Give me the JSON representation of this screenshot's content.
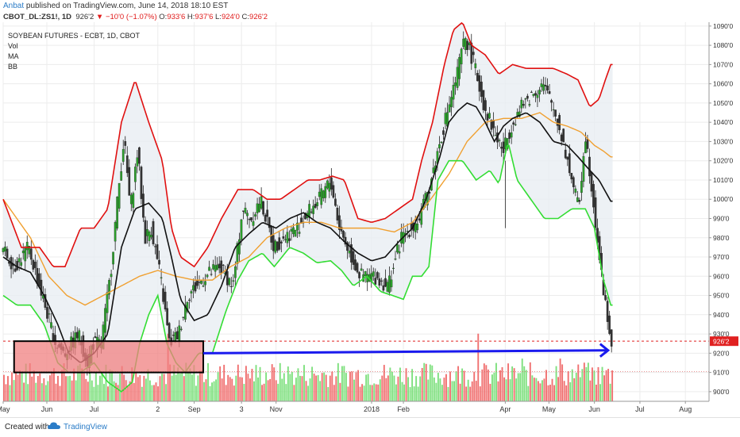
{
  "header": {
    "author": "Anbat",
    "published_text": "published on TradingView.com, June 14, 2018 18:10 EST",
    "symbol": "CBOT_DL:ZS1!, 1D",
    "last": "926'2",
    "change": "−10'0 (−1.07%)",
    "open_label": "O:",
    "open": "933'6",
    "high_label": "H:",
    "high": "937'6",
    "low_label": "L:",
    "low": "924'0",
    "close_label": "C:",
    "close": "926'2"
  },
  "legend": {
    "title": "SOYBEAN FUTURES - ECBT, 1D, CBOT",
    "vol": "Vol",
    "ma": "MA",
    "bb": "BB"
  },
  "footer": {
    "created_with": "Created with",
    "brand": "TradingView"
  },
  "colors": {
    "bb_upper": "#e01010",
    "bb_lower": "#33dd33",
    "ma_fast": "#111111",
    "ma_slow": "#f0a030",
    "arrow": "#1a1aee",
    "box_fill": "#f08080",
    "vol_up": "#7ee07e",
    "vol_down": "#f07070",
    "price_tag": "#e02020"
  },
  "chart_data": {
    "type": "candlestick",
    "price_axis": {
      "range": [
        895,
        1092
      ],
      "ticks": [
        "900'0",
        "910'0",
        "920'0",
        "930'0",
        "940'0",
        "950'0",
        "960'0",
        "970'0",
        "980'0",
        "990'0",
        "1000'0",
        "1010'0",
        "1020'0",
        "1030'0",
        "1040'0",
        "1050'0",
        "1060'0",
        "1070'0",
        "1080'0",
        "1090'0"
      ],
      "last_price_label": "926'2",
      "last_price": 926.25
    },
    "time_axis": {
      "labels": [
        "May",
        "Jun",
        "Jul",
        "2",
        "Sep",
        "3",
        "Nov",
        "2018",
        "Feb",
        "Apr",
        "May",
        "Jun",
        "Jul",
        "Aug"
      ],
      "label_days": [
        0,
        48,
        100,
        170,
        210,
        262,
        300,
        405,
        440,
        552,
        600,
        650,
        700,
        750
      ]
    },
    "last_day": 670,
    "price_path": [
      [
        0,
        975
      ],
      [
        15,
        965
      ],
      [
        30,
        975
      ],
      [
        45,
        950
      ],
      [
        60,
        925
      ],
      [
        70,
        920
      ],
      [
        85,
        930
      ],
      [
        95,
        915
      ],
      [
        100,
        925
      ],
      [
        110,
        925
      ],
      [
        120,
        960
      ],
      [
        128,
        1000
      ],
      [
        135,
        1032
      ],
      [
        142,
        995
      ],
      [
        150,
        1025
      ],
      [
        158,
        980
      ],
      [
        165,
        985
      ],
      [
        175,
        960
      ],
      [
        185,
        925
      ],
      [
        195,
        930
      ],
      [
        205,
        950
      ],
      [
        215,
        955
      ],
      [
        225,
        960
      ],
      [
        240,
        965
      ],
      [
        255,
        955
      ],
      [
        265,
        995
      ],
      [
        275,
        990
      ],
      [
        285,
        1000
      ],
      [
        300,
        975
      ],
      [
        310,
        980
      ],
      [
        325,
        985
      ],
      [
        340,
        995
      ],
      [
        350,
        1000
      ],
      [
        362,
        1010
      ],
      [
        372,
        985
      ],
      [
        385,
        970
      ],
      [
        395,
        960
      ],
      [
        410,
        960
      ],
      [
        425,
        955
      ],
      [
        440,
        980
      ],
      [
        450,
        985
      ],
      [
        460,
        990
      ],
      [
        470,
        1005
      ],
      [
        480,
        1025
      ],
      [
        490,
        1045
      ],
      [
        500,
        1062
      ],
      [
        510,
        1085
      ],
      [
        520,
        1070
      ],
      [
        530,
        1050
      ],
      [
        542,
        1035
      ],
      [
        552,
        1025
      ],
      [
        562,
        1040
      ],
      [
        575,
        1050
      ],
      [
        585,
        1055
      ],
      [
        595,
        1060
      ],
      [
        605,
        1050
      ],
      [
        615,
        1035
      ],
      [
        625,
        1015
      ],
      [
        635,
        995
      ],
      [
        642,
        1035
      ],
      [
        652,
        995
      ],
      [
        660,
        960
      ],
      [
        666,
        940
      ],
      [
        670,
        926
      ]
    ],
    "bb_upper": [
      [
        0,
        1000
      ],
      [
        20,
        975
      ],
      [
        40,
        975
      ],
      [
        55,
        965
      ],
      [
        68,
        965
      ],
      [
        85,
        985
      ],
      [
        100,
        985
      ],
      [
        115,
        995
      ],
      [
        130,
        1040
      ],
      [
        145,
        1062
      ],
      [
        160,
        1040
      ],
      [
        175,
        1020
      ],
      [
        185,
        985
      ],
      [
        195,
        970
      ],
      [
        210,
        965
      ],
      [
        225,
        975
      ],
      [
        240,
        990
      ],
      [
        258,
        1005
      ],
      [
        275,
        1005
      ],
      [
        290,
        1000
      ],
      [
        305,
        1000
      ],
      [
        320,
        1005
      ],
      [
        335,
        1010
      ],
      [
        348,
        1010
      ],
      [
        362,
        1012
      ],
      [
        375,
        1010
      ],
      [
        390,
        990
      ],
      [
        405,
        988
      ],
      [
        420,
        990
      ],
      [
        435,
        995
      ],
      [
        450,
        1000
      ],
      [
        460,
        1020
      ],
      [
        472,
        1040
      ],
      [
        485,
        1070
      ],
      [
        495,
        1088
      ],
      [
        505,
        1092
      ],
      [
        515,
        1080
      ],
      [
        530,
        1075
      ],
      [
        545,
        1065
      ],
      [
        560,
        1070
      ],
      [
        575,
        1068
      ],
      [
        590,
        1068
      ],
      [
        605,
        1068
      ],
      [
        620,
        1065
      ],
      [
        632,
        1062
      ],
      [
        645,
        1048
      ],
      [
        655,
        1052
      ],
      [
        662,
        1062
      ],
      [
        668,
        1070
      ]
    ],
    "bb_lower": [
      [
        0,
        950
      ],
      [
        15,
        945
      ],
      [
        30,
        945
      ],
      [
        45,
        935
      ],
      [
        60,
        915
      ],
      [
        72,
        910
      ],
      [
        85,
        910
      ],
      [
        100,
        915
      ],
      [
        115,
        905
      ],
      [
        130,
        900
      ],
      [
        142,
        905
      ],
      [
        150,
        925
      ],
      [
        160,
        940
      ],
      [
        170,
        950
      ],
      [
        180,
        925
      ],
      [
        190,
        915
      ],
      [
        200,
        910
      ],
      [
        215,
        920
      ],
      [
        230,
        920
      ],
      [
        245,
        942
      ],
      [
        258,
        958
      ],
      [
        270,
        968
      ],
      [
        285,
        972
      ],
      [
        298,
        965
      ],
      [
        315,
        975
      ],
      [
        330,
        972
      ],
      [
        345,
        967
      ],
      [
        360,
        968
      ],
      [
        372,
        963
      ],
      [
        385,
        955
      ],
      [
        400,
        960
      ],
      [
        415,
        952
      ],
      [
        428,
        950
      ],
      [
        440,
        948
      ],
      [
        450,
        960
      ],
      [
        460,
        960
      ],
      [
        468,
        965
      ],
      [
        478,
        1010
      ],
      [
        490,
        1020
      ],
      [
        505,
        1020
      ],
      [
        520,
        1010
      ],
      [
        535,
        1015
      ],
      [
        545,
        1008
      ],
      [
        555,
        1030
      ],
      [
        565,
        1010
      ],
      [
        580,
        1000
      ],
      [
        595,
        990
      ],
      [
        610,
        990
      ],
      [
        625,
        995
      ],
      [
        640,
        995
      ],
      [
        650,
        985
      ],
      [
        660,
        958
      ],
      [
        668,
        945
      ]
    ],
    "ma_fast": [
      [
        0,
        970
      ],
      [
        15,
        965
      ],
      [
        30,
        962
      ],
      [
        45,
        950
      ],
      [
        60,
        935
      ],
      [
        72,
        920
      ],
      [
        85,
        915
      ],
      [
        100,
        920
      ],
      [
        115,
        930
      ],
      [
        130,
        975
      ],
      [
        145,
        995
      ],
      [
        160,
        998
      ],
      [
        175,
        990
      ],
      [
        185,
        970
      ],
      [
        195,
        948
      ],
      [
        210,
        937
      ],
      [
        225,
        940
      ],
      [
        240,
        955
      ],
      [
        255,
        975
      ],
      [
        270,
        982
      ],
      [
        285,
        988
      ],
      [
        300,
        985
      ],
      [
        315,
        990
      ],
      [
        330,
        993
      ],
      [
        345,
        988
      ],
      [
        360,
        985
      ],
      [
        375,
        978
      ],
      [
        390,
        972
      ],
      [
        405,
        968
      ],
      [
        420,
        970
      ],
      [
        435,
        978
      ],
      [
        450,
        985
      ],
      [
        465,
        1000
      ],
      [
        480,
        1022
      ],
      [
        490,
        1040
      ],
      [
        500,
        1046
      ],
      [
        510,
        1050
      ],
      [
        520,
        1048
      ],
      [
        530,
        1040
      ],
      [
        540,
        1030
      ],
      [
        550,
        1038
      ],
      [
        560,
        1042
      ],
      [
        575,
        1045
      ],
      [
        590,
        1040
      ],
      [
        605,
        1030
      ],
      [
        620,
        1028
      ],
      [
        632,
        1022
      ],
      [
        645,
        1015
      ],
      [
        655,
        1010
      ],
      [
        668,
        999
      ]
    ],
    "ma_slow": [
      [
        0,
        1000
      ],
      [
        15,
        990
      ],
      [
        30,
        980
      ],
      [
        50,
        960
      ],
      [
        70,
        950
      ],
      [
        90,
        945
      ],
      [
        110,
        950
      ],
      [
        130,
        955
      ],
      [
        150,
        960
      ],
      [
        170,
        963
      ],
      [
        190,
        960
      ],
      [
        210,
        958
      ],
      [
        230,
        958
      ],
      [
        250,
        965
      ],
      [
        270,
        970
      ],
      [
        290,
        980
      ],
      [
        310,
        985
      ],
      [
        330,
        988
      ],
      [
        350,
        988
      ],
      [
        370,
        985
      ],
      [
        390,
        985
      ],
      [
        410,
        985
      ],
      [
        430,
        983
      ],
      [
        450,
        988
      ],
      [
        470,
        1000
      ],
      [
        490,
        1013
      ],
      [
        510,
        1030
      ],
      [
        530,
        1040
      ],
      [
        550,
        1042
      ],
      [
        570,
        1042
      ],
      [
        590,
        1045
      ],
      [
        605,
        1040
      ],
      [
        620,
        1038
      ],
      [
        635,
        1035
      ],
      [
        650,
        1028
      ],
      [
        660,
        1025
      ],
      [
        668,
        1022
      ]
    ],
    "volume": {
      "scale_max": 100,
      "spikes": [
        [
          180,
          95
        ],
        [
          522,
          95
        ],
        [
          570,
          60
        ],
        [
          612,
          60
        ],
        [
          640,
          48
        ]
      ]
    },
    "annotations": {
      "box": {
        "day_from": 12,
        "day_to": 220,
        "price_low": 910,
        "price_high": 926.25
      },
      "arrow": {
        "day_from": 220,
        "day_to": 665,
        "price_from": 920,
        "price_to": 921.5
      },
      "dashed_level": 926.25,
      "dotted_level": 910.5
    }
  }
}
